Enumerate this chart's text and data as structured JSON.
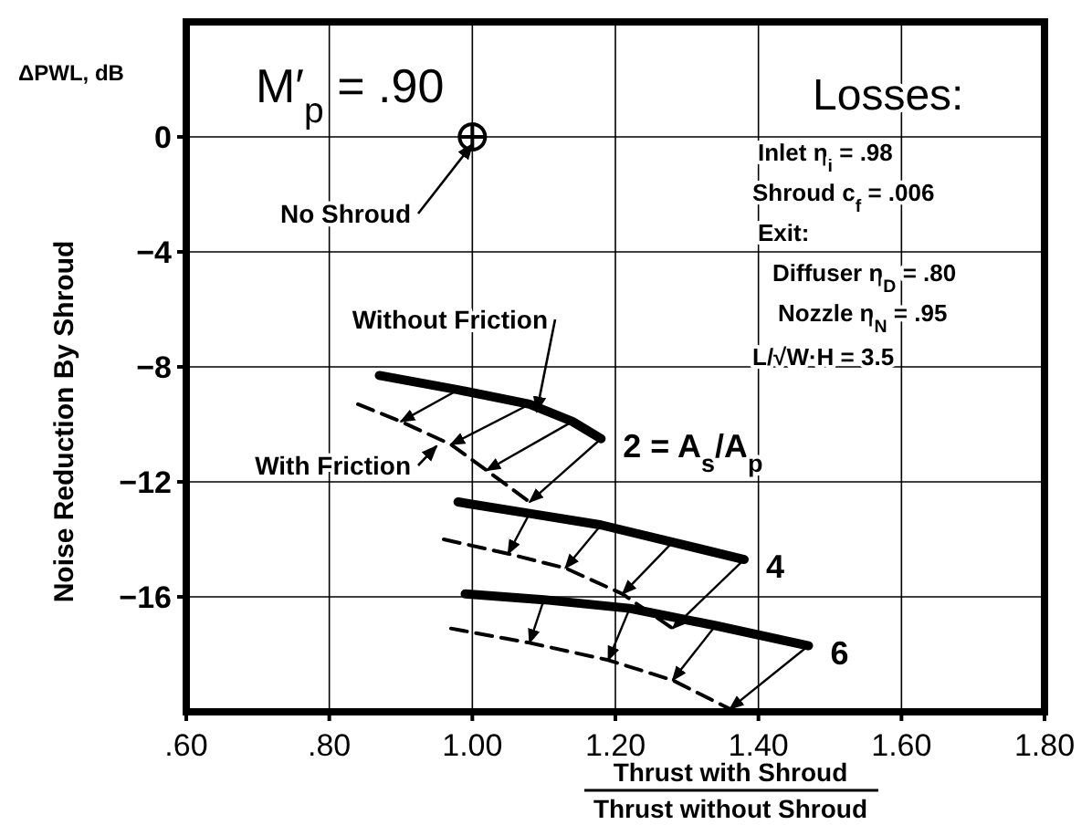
{
  "chart_data": {
    "type": "line",
    "ylabel": "Noise Reduction By Shroud",
    "xlabel": "Thrust with Shroud",
    "xlim": [
      0.6,
      1.8
    ],
    "ylim": [
      -20,
      4
    ],
    "xticks": [
      {
        "value": 0.6,
        "label": ".60"
      },
      {
        "value": 0.8,
        "label": ".80"
      },
      {
        "value": 1.0,
        "label": "1.00"
      },
      {
        "value": 1.2,
        "label": "1.20"
      },
      {
        "value": 1.4,
        "label": "1.40"
      },
      {
        "value": 1.6,
        "label": "1.60"
      },
      {
        "value": 1.8,
        "label": "1.80"
      }
    ],
    "yticks": [
      0,
      -4,
      -8,
      -12,
      -16
    ],
    "grid": true,
    "series": [
      {
        "name": "2 = A$_{s}$/A$_{p}$",
        "color": "#000000",
        "line_style": "solid",
        "x": [
          0.87,
          0.98,
          1.08,
          1.14,
          1.18
        ],
        "values": [
          -8.3,
          -8.8,
          -9.3,
          -9.9,
          -10.5
        ]
      },
      {
        "color": "#000000",
        "line_style": "dashed",
        "x": [
          0.84,
          0.9,
          0.97,
          1.02,
          1.08
        ],
        "values": [
          -9.3,
          -9.9,
          -10.7,
          -11.6,
          -12.7
        ]
      },
      {
        "name": "4",
        "color": "#000000",
        "line_style": "solid",
        "x": [
          0.98,
          1.08,
          1.18,
          1.28,
          1.38
        ],
        "values": [
          -12.7,
          -13.1,
          -13.5,
          -14.1,
          -14.7
        ]
      },
      {
        "color": "#000000",
        "line_style": "dashed",
        "x": [
          0.96,
          1.05,
          1.13,
          1.21,
          1.28
        ],
        "values": [
          -14.0,
          -14.5,
          -15.0,
          -15.9,
          -17.1
        ]
      },
      {
        "name": "6",
        "color": "#000000",
        "line_style": "solid",
        "x": [
          0.99,
          1.1,
          1.22,
          1.34,
          1.47
        ],
        "values": [
          -15.9,
          -16.1,
          -16.4,
          -17.0,
          -17.7
        ]
      },
      {
        "color": "#000000",
        "line_style": "dashed",
        "x": [
          0.97,
          1.08,
          1.19,
          1.28,
          1.36
        ],
        "values": [
          -17.1,
          -17.6,
          -18.2,
          -18.9,
          -19.9
        ]
      },
      {
        "type": "scatter",
        "marker": "circle",
        "color": "#000000",
        "x": [
          1.0
        ],
        "values": [
          0
        ]
      }
    ],
    "annotations": [
      "ΔPWL, dB",
      "M′$_{p}$ = .90",
      "Losses:",
      "Inlet   η$_{i}$ = .98",
      "Shroud  c$_{f}$ = .006",
      "Exit:",
      "Diffuser η$_{D}$ = .80",
      "Nozzle   η$_{N}$ = .95",
      "L/√W·H   = 3.5",
      {
        "text": "No Shroud",
        "x": 1.0,
        "y": 0
      },
      {
        "text": "Without Friction",
        "x": 1.09,
        "y": -9.3
      },
      {
        "text": "With Friction",
        "x": 0.95,
        "y": -10.5
      },
      "Thrust without Shroud"
    ]
  }
}
